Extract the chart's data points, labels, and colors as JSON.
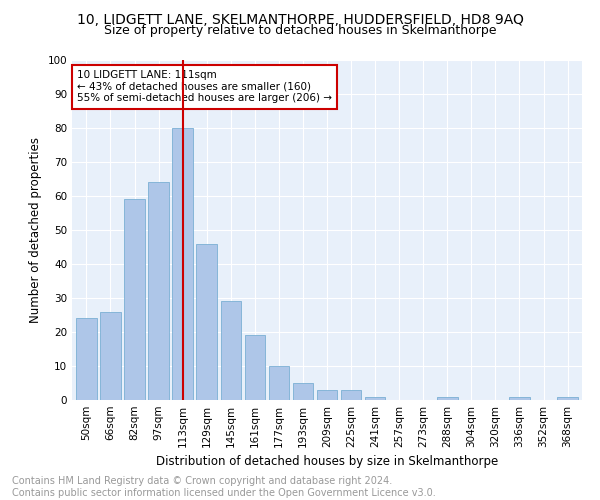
{
  "title": "10, LIDGETT LANE, SKELMANTHORPE, HUDDERSFIELD, HD8 9AQ",
  "subtitle": "Size of property relative to detached houses in Skelmanthorpe",
  "xlabel": "Distribution of detached houses by size in Skelmanthorpe",
  "ylabel": "Number of detached properties",
  "categories": [
    "50sqm",
    "66sqm",
    "82sqm",
    "97sqm",
    "113sqm",
    "129sqm",
    "145sqm",
    "161sqm",
    "177sqm",
    "193sqm",
    "209sqm",
    "225sqm",
    "241sqm",
    "257sqm",
    "273sqm",
    "288sqm",
    "304sqm",
    "320sqm",
    "336sqm",
    "352sqm",
    "368sqm"
  ],
  "values": [
    24,
    26,
    59,
    64,
    80,
    46,
    29,
    19,
    10,
    5,
    3,
    3,
    1,
    0,
    0,
    1,
    0,
    0,
    1,
    0,
    1
  ],
  "bar_color": "#aec6e8",
  "bar_edge_color": "#7aafd4",
  "vline_x_index": 4,
  "vline_color": "#cc0000",
  "annotation_text": "10 LIDGETT LANE: 111sqm\n← 43% of detached houses are smaller (160)\n55% of semi-detached houses are larger (206) →",
  "annotation_box_facecolor": "#ffffff",
  "annotation_box_edgecolor": "#cc0000",
  "ylim": [
    0,
    100
  ],
  "yticks": [
    0,
    10,
    20,
    30,
    40,
    50,
    60,
    70,
    80,
    90,
    100
  ],
  "background_color": "#e8f0fa",
  "grid_color": "#ffffff",
  "footer_text": "Contains HM Land Registry data © Crown copyright and database right 2024.\nContains public sector information licensed under the Open Government Licence v3.0.",
  "title_fontsize": 10,
  "subtitle_fontsize": 9,
  "xlabel_fontsize": 8.5,
  "ylabel_fontsize": 8.5,
  "tick_fontsize": 7.5,
  "annotation_fontsize": 7.5,
  "footer_fontsize": 7
}
